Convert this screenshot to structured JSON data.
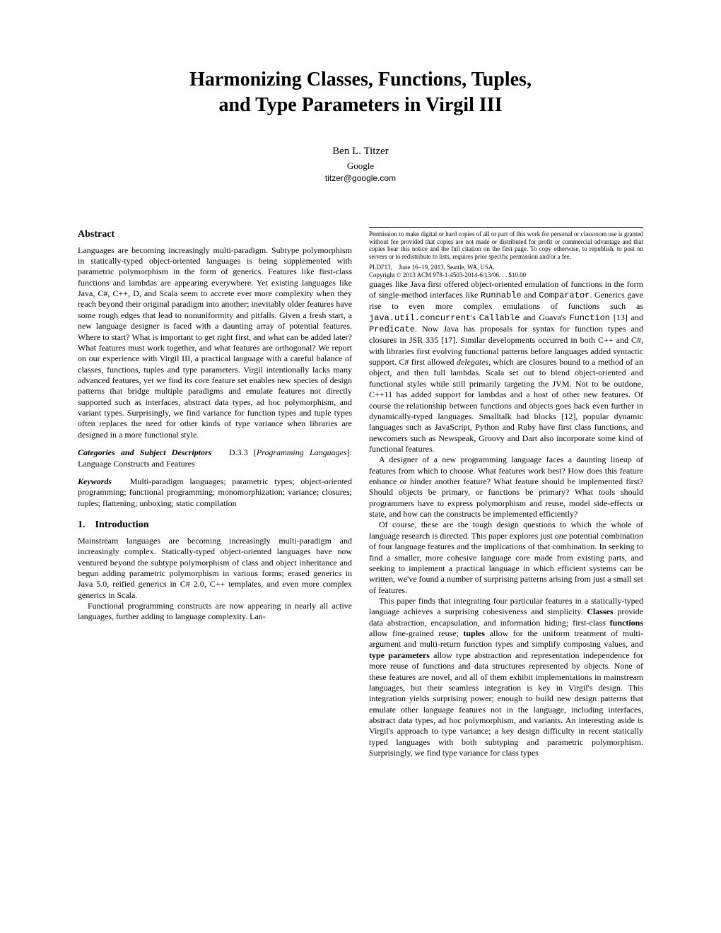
{
  "title_l1": "Harmonizing Classes, Functions, Tuples,",
  "title_l2": "and Type Parameters in Virgil III",
  "author": "Ben L. Titzer",
  "affil": "Google",
  "email": "titzer@google.com",
  "abstract_heading": "Abstract",
  "abstract_body": "Languages are becoming increasingly multi-paradigm. Subtype polymorphism in statically-typed object-oriented languages is being supplemented with parametric polymorphism in the form of generics. Features like first-class functions and lambdas are appearing everywhere. Yet existing languages like Java, C#, C++, D, and Scala seem to accrete ever more complexity when they reach beyond their original paradigm into another; inevitably older features have some rough edges that lead to nonuniformity and pitfalls. Given a fresh start, a new language designer is faced with a daunting array of potential features. Where to start? What is important to get right first, and what can be added later? What features must work together, and what features are orthogonal? We report on our experience with Virgil III, a practical language with a careful balance of classes, functions, tuples and type parameters. Virgil intentionally lacks many advanced features, yet we find its core feature set enables new species of design patterns that bridge multiple paradigms and emulate features not directly supported such as interfaces, abstract data types, ad hoc polymorphism, and variant types. Surprisingly, we find variance for function types and tuple types often replaces the need for other kinds of type variance when libraries are designed in a more functional style.",
  "cat_label": "Categories and Subject Descriptors",
  "cat_text": "D.3.3 [",
  "cat_em": "Programming Languages",
  "cat_rest": "]: Language Constructs and Features",
  "kw_label": "Keywords",
  "kw_text": "Multi-paradigm languages; parametric types; object-oriented programming; functional programming; monomorphization; variance; closures; tuples; flattening; unboxing; static compilation",
  "intro_heading": "1. Introduction",
  "intro_p1": "Mainstream languages are becoming increasingly multi-paradigm and increasingly complex. Statically-typed object-oriented languages have now ventured beyond the subtype polymorphism of class and object inheritance and begun adding parametric polymorphism in various forms; erased generics in Java 5.0, reified generics in C# 2.0, C++ templates, and even more complex generics in Scala.",
  "intro_p2": "Functional programming constructs are now appearing in nearly all active languages, further adding to language complexity. Lan-",
  "perm_text": "Permission to make digital or hard copies of all or part of this work for personal or classroom use is granted without fee provided that copies are not made or distributed for profit or commercial advantage and that copies bear this notice and the full citation on the first page. To copy otherwise, to republish, to post on servers or to redistribute to lists, requires prior specific permission and/or a fee.",
  "conf": "PLDI'13, June 16–19, 2013, Seattle, WA, USA.",
  "copyright": "Copyright © 2013 ACM 978-1-4503-2014-6/13/06. . . $10.00",
  "col2_p1a": "guages like Java first offered object-oriented emulation of functions in the form of single-method interfaces like ",
  "col2_p1_runnable": "Runnable",
  "col2_p1b": " and ",
  "col2_p1_comparator": "Comparator",
  "col2_p1c": ". Generics gave rise to even more complex emulations of functions such as ",
  "col2_p1_juc": "java.util.concurrent",
  "col2_p1d": "'s ",
  "col2_p1_callable": "Callable",
  "col2_p1e": " and Guava's ",
  "col2_p1_function": "Function",
  "col2_p1f": " [13] and ",
  "col2_p1_predicate": "Predicate",
  "col2_p1g": ". Now Java has proposals for syntax for function types and closures in JSR 335 [17]. Similar developments occurred in both C++ and C#, with libraries first evolving functional patterns before languages added syntactic support. C# first allowed ",
  "col2_p1_delegates": "delegates",
  "col2_p1h": ", which are closures bound to a method of an object, and then full lambdas. Scala set out to blend object-oriented and functional styles while still primarily targeting the JVM. Not to be outdone, C++11 has added support for lambdas and a host of other new features. Of course the relationship between functions and objects goes back even further in dynamically-typed languages. Smalltalk had blocks [12], popular dynamic languages such as JavaScript, Python and Ruby have first class functions, and newcomers such as Newspeak, Groovy and Dart also incorporate some kind of functional features.",
  "col2_p2": "A designer of a new programming language faces a daunting lineup of features from which to choose. What features work best? How does this feature enhance or hinder another feature? What feature should be implemented first? Should objects be primary, or functions be primary? What tools should programmers have to express polymorphism and reuse, model side-effects or state, and how can the constructs be implemented efficiently?",
  "col2_p3a": "Of course, these are the tough design questions to which the whole of language research is directed. This paper explores just ",
  "col2_p3_one": "one",
  "col2_p3b": " potential combination of four language features and the implications of that combination. In seeking to find a smaller, more cohesive language core made from existing parts, and seeking to implement a practical language in which efficient systems can be written, we've found a number of surprising patterns arising from just a small set of features.",
  "col2_p4a": "This paper finds that integrating four particular features in a statically-typed language achieves a surprising cohesiveness and simplicity. ",
  "col2_p4_classes": "Classes",
  "col2_p4b": " provide data abstraction, encapsulation, and information hiding; first-class ",
  "col2_p4_functions": "functions",
  "col2_p4c": " allow fine-grained reuse; ",
  "col2_p4_tuples": "tuples",
  "col2_p4d": " allow for the uniform treatment of multi-argument and multi-return function types and simplify composing values, and ",
  "col2_p4_typeparams": "type parameters",
  "col2_p4e": " allow type abstraction and representation independence for more reuse of functions and data structures represented by objects. None of these features are novel, and all of them exhibit implementations in mainstream languages, but their seamless integration is key in Virgil's design. This integration yields surprising power; enough to build new design patterns that emulate other language features not in the language, including interfaces, abstract data types, ad hoc polymorphism, and variants. An interesting aside is Virgil's approach to type variance; a key design difficulty in recent statically typed languages with both subtyping and parametric polymorphism. Surprisingly, we find type variance for class types"
}
